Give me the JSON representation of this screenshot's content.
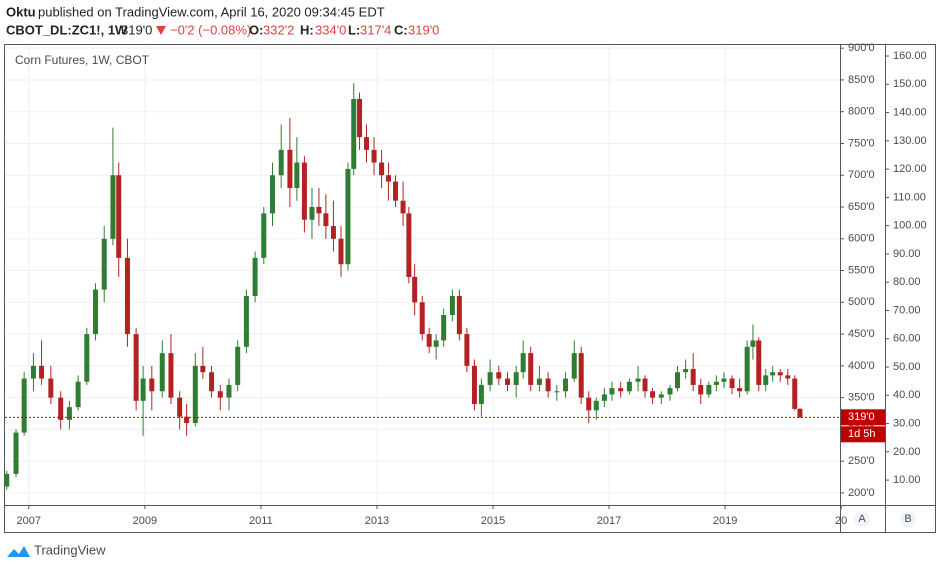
{
  "header": {
    "publisher": "Oktu",
    "published": "published on TradingView.com, April 16, 2020 09:34:45 EDT",
    "symbol": "CBOT_DL:ZC1!, 1W",
    "price": "319'0",
    "change": "−0'2 (−0.08%)",
    "ohlc": [
      {
        "label": "O:",
        "value": "332'2"
      },
      {
        "label": "H:",
        "value": "334'0"
      },
      {
        "label": "L:",
        "value": "317'4"
      },
      {
        "label": "C:",
        "value": "319'0"
      }
    ]
  },
  "buttons": [
    "A",
    "B"
  ],
  "footer": {
    "brand": "TradingView"
  },
  "chart_data": {
    "type": "candlestick",
    "title": "Corn Futures, 1W, CBOT",
    "up_color": "#2e7d32",
    "down_color": "#b22222",
    "x": [
      2006.62,
      2006.78,
      2006.92,
      2007.08,
      2007.22,
      2007.38,
      2007.55,
      2007.7,
      2007.85,
      2008.0,
      2008.15,
      2008.3,
      2008.45,
      2008.55,
      2008.7,
      2008.85,
      2008.97,
      2009.12,
      2009.3,
      2009.45,
      2009.6,
      2009.72,
      2009.87,
      2010.0,
      2010.15,
      2010.3,
      2010.45,
      2010.6,
      2010.75,
      2010.9,
      2011.05,
      2011.2,
      2011.35,
      2011.5,
      2011.62,
      2011.75,
      2011.88,
      2012.0,
      2012.12,
      2012.25,
      2012.38,
      2012.5,
      2012.6,
      2012.7,
      2012.82,
      2012.95,
      2013.08,
      2013.2,
      2013.32,
      2013.45,
      2013.55,
      2013.65,
      2013.78,
      2013.9,
      2014.02,
      2014.15,
      2014.3,
      2014.42,
      2014.55,
      2014.68,
      2014.8,
      2014.95,
      2015.1,
      2015.25,
      2015.4,
      2015.52,
      2015.65,
      2015.8,
      2015.95,
      2016.1,
      2016.25,
      2016.4,
      2016.52,
      2016.65,
      2016.78,
      2016.92,
      2017.05,
      2017.2,
      2017.35,
      2017.5,
      2017.62,
      2017.75,
      2017.9,
      2018.05,
      2018.18,
      2018.32,
      2018.45,
      2018.58,
      2018.72,
      2018.85,
      2018.98,
      2019.12,
      2019.25,
      2019.38,
      2019.48,
      2019.58,
      2019.7,
      2019.82,
      2019.95,
      2020.08,
      2020.2,
      2020.29
    ],
    "open": [
      210,
      230,
      295,
      380,
      400,
      380,
      350,
      315,
      335,
      375,
      450,
      520,
      600,
      700,
      570,
      450,
      345,
      380,
      360,
      420,
      350,
      320,
      310,
      400,
      390,
      360,
      350,
      370,
      430,
      510,
      570,
      640,
      700,
      740,
      680,
      720,
      630,
      650,
      640,
      620,
      600,
      560,
      710,
      820,
      760,
      740,
      720,
      700,
      690,
      660,
      640,
      540,
      500,
      450,
      430,
      440,
      480,
      510,
      450,
      400,
      340,
      370,
      390,
      380,
      370,
      390,
      420,
      370,
      380,
      360,
      360,
      380,
      420,
      350,
      330,
      345,
      355,
      365,
      360,
      375,
      380,
      360,
      350,
      355,
      365,
      390,
      395,
      370,
      355,
      370,
      375,
      380,
      365,
      360,
      430,
      440,
      370,
      385,
      390,
      385,
      380,
      332.25
    ],
    "high": [
      235,
      300,
      390,
      420,
      440,
      400,
      360,
      345,
      385,
      460,
      530,
      620,
      775,
      720,
      600,
      460,
      400,
      400,
      440,
      450,
      360,
      340,
      420,
      430,
      400,
      370,
      380,
      440,
      520,
      580,
      650,
      720,
      780,
      790,
      760,
      730,
      680,
      680,
      670,
      660,
      620,
      720,
      845,
      830,
      780,
      760,
      740,
      720,
      700,
      690,
      650,
      560,
      510,
      460,
      450,
      490,
      520,
      520,
      460,
      410,
      380,
      410,
      400,
      390,
      400,
      440,
      430,
      400,
      390,
      370,
      390,
      440,
      430,
      360,
      350,
      365,
      375,
      375,
      380,
      400,
      385,
      365,
      360,
      370,
      400,
      410,
      420,
      380,
      375,
      385,
      390,
      385,
      380,
      440,
      465,
      445,
      395,
      400,
      395,
      395,
      385,
      334
    ],
    "low": [
      205,
      225,
      290,
      360,
      370,
      340,
      300,
      300,
      330,
      370,
      440,
      500,
      590,
      540,
      430,
      330,
      290,
      330,
      350,
      340,
      300,
      290,
      305,
      380,
      350,
      330,
      330,
      360,
      420,
      500,
      560,
      620,
      680,
      650,
      660,
      610,
      600,
      620,
      600,
      580,
      540,
      550,
      700,
      740,
      720,
      700,
      680,
      660,
      650,
      620,
      530,
      480,
      440,
      420,
      410,
      430,
      470,
      440,
      390,
      330,
      320,
      360,
      370,
      360,
      350,
      380,
      360,
      360,
      350,
      345,
      350,
      375,
      340,
      310,
      315,
      335,
      345,
      350,
      355,
      360,
      350,
      340,
      340,
      345,
      360,
      380,
      360,
      340,
      350,
      360,
      365,
      355,
      350,
      355,
      410,
      360,
      360,
      375,
      375,
      370,
      330,
      317.5
    ],
    "close": [
      230,
      295,
      380,
      400,
      380,
      350,
      315,
      335,
      375,
      450,
      520,
      600,
      700,
      570,
      450,
      345,
      380,
      360,
      420,
      350,
      320,
      310,
      400,
      390,
      360,
      350,
      370,
      430,
      510,
      570,
      640,
      700,
      740,
      680,
      720,
      630,
      650,
      640,
      620,
      600,
      560,
      710,
      820,
      760,
      740,
      720,
      700,
      690,
      660,
      640,
      540,
      500,
      450,
      430,
      440,
      480,
      510,
      450,
      400,
      340,
      370,
      390,
      380,
      370,
      390,
      420,
      370,
      380,
      360,
      360,
      380,
      420,
      350,
      330,
      345,
      355,
      365,
      360,
      375,
      380,
      360,
      350,
      355,
      365,
      390,
      395,
      370,
      355,
      370,
      375,
      380,
      365,
      360,
      430,
      440,
      370,
      385,
      390,
      385,
      380,
      332.25,
      319
    ],
    "xlim": [
      2006.59,
      2020.98
    ],
    "xticks": [
      2007,
      2009,
      2011,
      2013,
      2015,
      2017,
      2019,
      {
        "value": 2021,
        "label": "20"
      }
    ],
    "ylim": [
      181,
      905
    ],
    "yticks": [
      {
        "value": 200,
        "label": "200'0"
      },
      {
        "value": 250,
        "label": "250'0"
      },
      {
        "value": 300,
        "label": "300'0"
      },
      {
        "value": 350,
        "label": "350'0"
      },
      {
        "value": 400,
        "label": "400'0"
      },
      {
        "value": 450,
        "label": "450'0"
      },
      {
        "value": 500,
        "label": "500'0"
      },
      {
        "value": 550,
        "label": "550'0"
      },
      {
        "value": 600,
        "label": "600'0"
      },
      {
        "value": 650,
        "label": "650'0"
      },
      {
        "value": 700,
        "label": "700'0"
      },
      {
        "value": 750,
        "label": "750'0"
      },
      {
        "value": 800,
        "label": "800'0"
      },
      {
        "value": 850,
        "label": "850'0"
      },
      {
        "value": 900,
        "label": "900'0"
      }
    ],
    "y2lim": [
      1.2,
      163.9
    ],
    "y2ticks": [
      {
        "value": 10,
        "label": "10.00"
      },
      {
        "value": 20,
        "label": "20.00"
      },
      {
        "value": 30,
        "label": "30.00"
      },
      {
        "value": 40,
        "label": "40.00"
      },
      {
        "value": 50,
        "label": "50.00"
      },
      {
        "value": 60,
        "label": "60.00"
      },
      {
        "value": 70,
        "label": "70.00"
      },
      {
        "value": 80,
        "label": "80.00"
      },
      {
        "value": 90,
        "label": "90.00"
      },
      {
        "value": 100,
        "label": "100.00"
      },
      {
        "value": 110,
        "label": "110.00"
      },
      {
        "value": 120,
        "label": "120.00"
      },
      {
        "value": 130,
        "label": "130.00"
      },
      {
        "value": 140,
        "label": "140.00"
      },
      {
        "value": 150,
        "label": "150.00"
      },
      {
        "value": 160,
        "label": "160.00"
      }
    ],
    "grid": true,
    "last_price": {
      "value": 319,
      "label": "319'0",
      "color": "#c00000"
    },
    "countdown": "1d 5h"
  }
}
